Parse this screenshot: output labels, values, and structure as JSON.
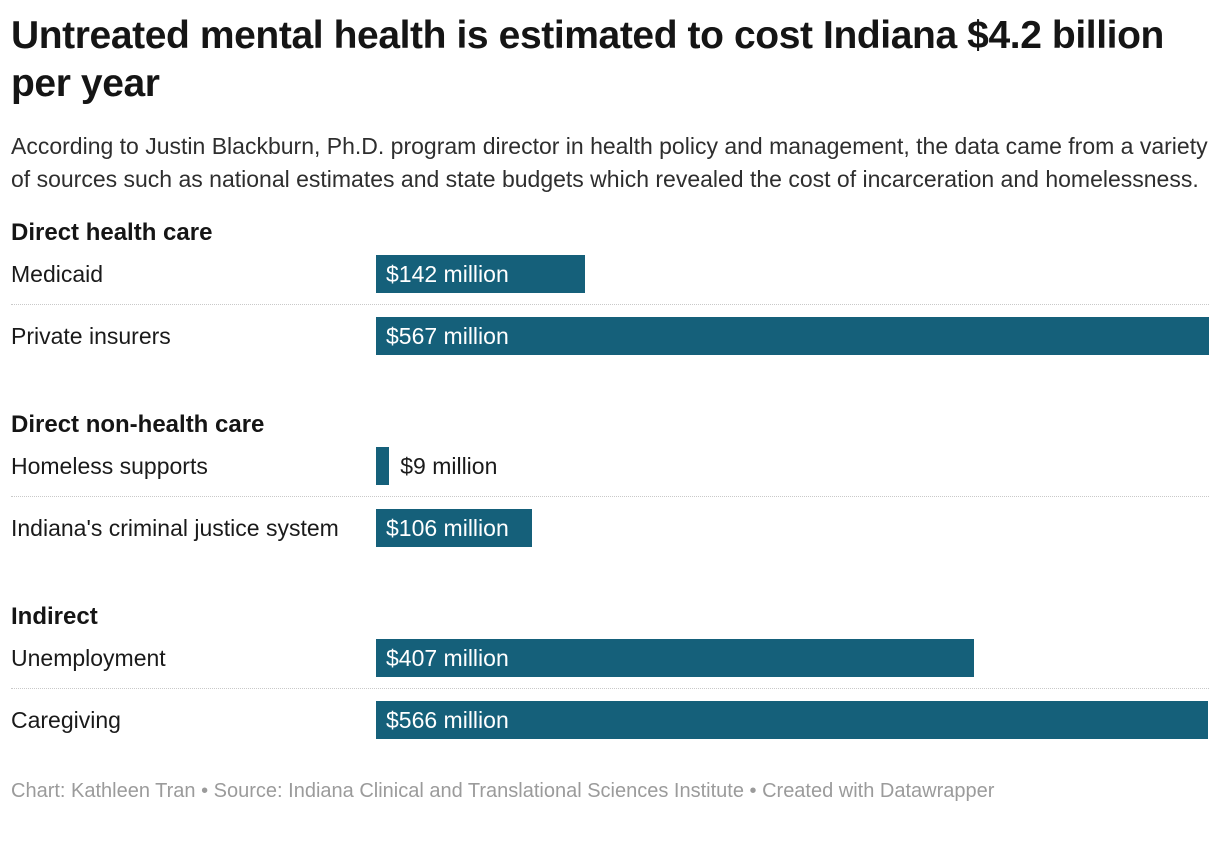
{
  "header": {
    "title": "Untreated mental health is estimated to cost Indiana $4.2 billion per year",
    "subtitle": "According to Justin Blackburn, Ph.D. program director in health policy and management, the data came from a variety of sources such as national estimates and state budgets which revealed the cost of incarceration and homelessness."
  },
  "chart_data": {
    "type": "bar",
    "orientation": "horizontal",
    "unit": "million USD",
    "value_axis_max": 567,
    "bar_color": "#15607a",
    "legend": null,
    "grid": false,
    "groups": [
      {
        "label": "Direct health care",
        "rows": [
          {
            "category": "Medicaid",
            "value": 142,
            "value_label": "$142 million",
            "label_position": "inside"
          },
          {
            "category": "Private insurers",
            "value": 567,
            "value_label": "$567 million",
            "label_position": "inside"
          }
        ]
      },
      {
        "label": "Direct non-health care",
        "rows": [
          {
            "category": "Homeless supports",
            "value": 9,
            "value_label": "$9 million",
            "label_position": "outside"
          },
          {
            "category": "Indiana's criminal justice system",
            "value": 106,
            "value_label": "$106 million",
            "label_position": "inside"
          }
        ]
      },
      {
        "label": "Indirect",
        "rows": [
          {
            "category": "Unemployment",
            "value": 407,
            "value_label": "$407 million",
            "label_position": "inside"
          },
          {
            "category": "Caregiving",
            "value": 566,
            "value_label": "$566 million",
            "label_position": "inside"
          }
        ]
      }
    ]
  },
  "footer": {
    "text": "Chart: Kathleen Tran • Source: Indiana Clinical and Translational Sciences Institute • Created with Datawrapper"
  }
}
